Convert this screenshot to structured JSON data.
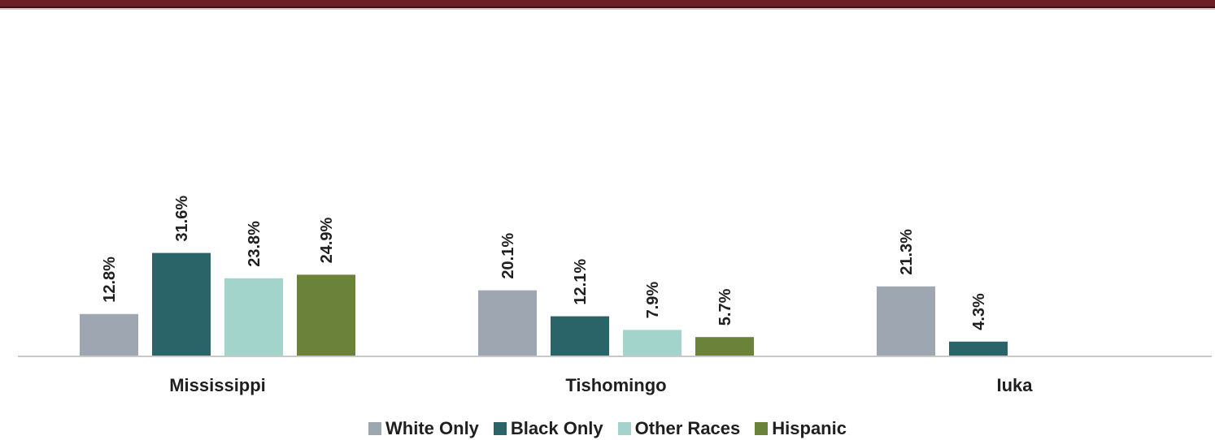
{
  "chart_data": {
    "type": "bar",
    "title": "",
    "xlabel": "",
    "ylabel": "",
    "ylim": [
      0,
      40
    ],
    "grid": false,
    "legend_position": "bottom",
    "categories": [
      "Mississippi",
      "Tishomingo",
      "Iuka"
    ],
    "series": [
      {
        "name": "White Only",
        "color": "#9ea7b1",
        "values": [
          12.8,
          20.1,
          21.3
        ],
        "labels": [
          "12.8%",
          "20.1%",
          "21.3%"
        ]
      },
      {
        "name": "Black Only",
        "color": "#2a6468",
        "values": [
          31.6,
          12.1,
          4.3
        ],
        "labels": [
          "31.6%",
          "12.1%",
          "4.3%"
        ]
      },
      {
        "name": "Other Races",
        "color": "#a2d4cc",
        "values": [
          23.8,
          7.9,
          null
        ],
        "labels": [
          "23.8%",
          "7.9%",
          ""
        ]
      },
      {
        "name": "Hispanic",
        "color": "#6a823a",
        "values": [
          24.9,
          5.7,
          null
        ],
        "labels": [
          "24.9%",
          "5.7%",
          ""
        ]
      }
    ]
  },
  "colors": {
    "header_band": "#6b1f24",
    "axis": "#c8c8c8",
    "text": "#1f1f1f"
  }
}
